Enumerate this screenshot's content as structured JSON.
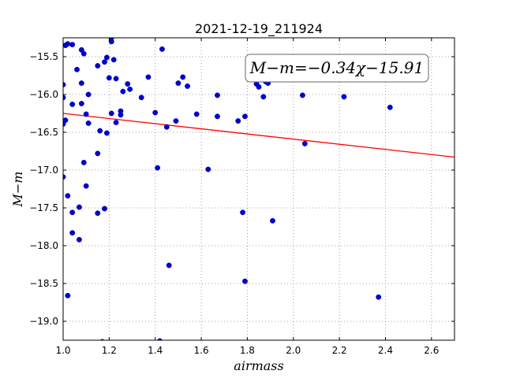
{
  "chart_data": {
    "type": "scatter",
    "title": "2021-12-19_211924",
    "xlabel": "airmass",
    "ylabel": "M−m",
    "xlim": [
      1.0,
      2.7
    ],
    "ylim": [
      -19.25,
      -15.25
    ],
    "x_ticks": [
      1.0,
      1.2,
      1.4,
      1.6,
      1.8,
      2.0,
      2.2,
      2.4,
      2.6
    ],
    "x_tick_labels": [
      "1.0",
      "1.2",
      "1.4",
      "1.6",
      "1.8",
      "2.0",
      "2.2",
      "2.4",
      "2.6"
    ],
    "y_ticks": [
      -15.5,
      -16.0,
      -16.5,
      -17.0,
      -17.5,
      -18.0,
      -18.5,
      -19.0
    ],
    "y_tick_labels": [
      "−15.5",
      "−16.0",
      "−16.5",
      "−17.0",
      "−17.5",
      "−18.0",
      "−18.5",
      "−19.0"
    ],
    "grid": true,
    "annotation": "M−m=−0.34χ−15.91",
    "fit": {
      "slope": -0.34,
      "intercept": -15.91,
      "color": "#ff0000"
    },
    "point_color": "#0000cc",
    "points": [
      [
        1.0,
        -15.87
      ],
      [
        1.0,
        -16.04
      ],
      [
        1.0,
        -16.39
      ],
      [
        1.01,
        -16.34
      ],
      [
        1.0,
        -17.09
      ],
      [
        1.01,
        -15.35
      ],
      [
        1.02,
        -15.33
      ],
      [
        1.02,
        -17.34
      ],
      [
        1.02,
        -18.66
      ],
      [
        1.04,
        -15.34
      ],
      [
        1.04,
        -16.13
      ],
      [
        1.04,
        -17.56
      ],
      [
        1.04,
        -17.83
      ],
      [
        1.06,
        -15.67
      ],
      [
        1.07,
        -17.92
      ],
      [
        1.07,
        -17.49
      ],
      [
        1.08,
        -15.41
      ],
      [
        1.08,
        -15.85
      ],
      [
        1.08,
        -16.12
      ],
      [
        1.09,
        -15.46
      ],
      [
        1.09,
        -16.9
      ],
      [
        1.1,
        -17.21
      ],
      [
        1.1,
        -16.26
      ],
      [
        1.11,
        -16.38
      ],
      [
        1.11,
        -16.0
      ],
      [
        1.15,
        -15.62
      ],
      [
        1.15,
        -16.78
      ],
      [
        1.15,
        -17.57
      ],
      [
        1.16,
        -16.48
      ],
      [
        1.18,
        -15.57
      ],
      [
        1.18,
        -17.51
      ],
      [
        1.19,
        -16.51
      ],
      [
        1.19,
        -15.51
      ],
      [
        1.2,
        -15.78
      ],
      [
        1.21,
        -15.25
      ],
      [
        1.21,
        -15.3
      ],
      [
        1.21,
        -16.25
      ],
      [
        1.22,
        -15.54
      ],
      [
        1.23,
        -15.79
      ],
      [
        1.23,
        -16.37
      ],
      [
        1.25,
        -16.22
      ],
      [
        1.25,
        -16.27
      ],
      [
        1.26,
        -15.96
      ],
      [
        1.28,
        -15.86
      ],
      [
        1.29,
        -15.93
      ],
      [
        1.34,
        -16.04
      ],
      [
        1.37,
        -15.77
      ],
      [
        1.4,
        -16.24
      ],
      [
        1.41,
        -16.97
      ],
      [
        1.43,
        -15.4
      ],
      [
        1.45,
        -16.43
      ],
      [
        1.46,
        -18.26
      ],
      [
        1.49,
        -16.35
      ],
      [
        1.5,
        -15.85
      ],
      [
        1.52,
        -15.77
      ],
      [
        1.54,
        -15.89
      ],
      [
        1.58,
        -16.26
      ],
      [
        1.63,
        -16.99
      ],
      [
        1.67,
        -16.01
      ],
      [
        1.67,
        -16.29
      ],
      [
        1.76,
        -16.35
      ],
      [
        1.78,
        -17.56
      ],
      [
        1.79,
        -16.29
      ],
      [
        1.79,
        -18.47
      ],
      [
        1.84,
        -15.86
      ],
      [
        1.85,
        -15.9
      ],
      [
        1.87,
        -16.03
      ],
      [
        1.88,
        -15.83
      ],
      [
        1.89,
        -15.85
      ],
      [
        1.91,
        -17.67
      ],
      [
        2.04,
        -16.01
      ],
      [
        2.05,
        -16.65
      ],
      [
        2.22,
        -16.03
      ],
      [
        2.37,
        -18.68
      ],
      [
        2.42,
        -16.17
      ],
      [
        1.17,
        -19.27
      ],
      [
        1.42,
        -19.26
      ]
    ]
  }
}
